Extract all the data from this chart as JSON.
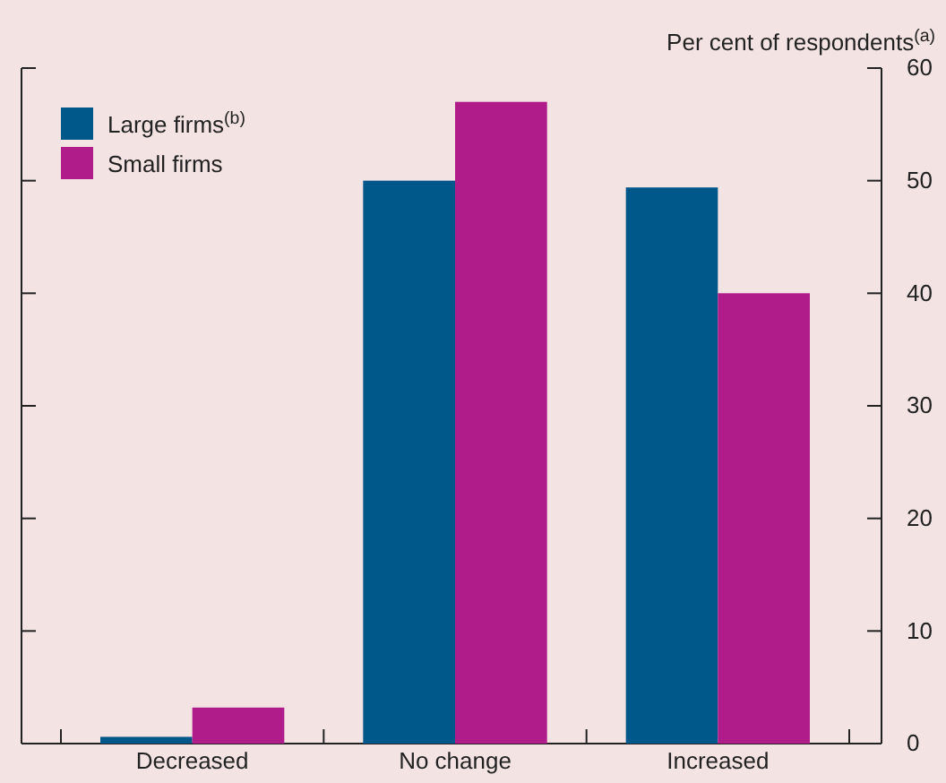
{
  "chart_data": {
    "type": "bar",
    "ylabel": "Per cent of respondents$^{(a)}$",
    "categories": [
      "Decreased",
      "No change",
      "Increased"
    ],
    "series": [
      {
        "name": "Large firms$^{(b)}$",
        "color": "#00578a",
        "values": [
          0.6,
          50,
          49.4
        ]
      },
      {
        "name": "Small firms",
        "color": "#b01c8a",
        "values": [
          3.2,
          57,
          40
        ]
      }
    ],
    "ylim": [
      0,
      60
    ],
    "yticks": [
      0,
      10,
      20,
      30,
      40,
      50,
      60
    ],
    "legend": "top left",
    "grid": false
  }
}
